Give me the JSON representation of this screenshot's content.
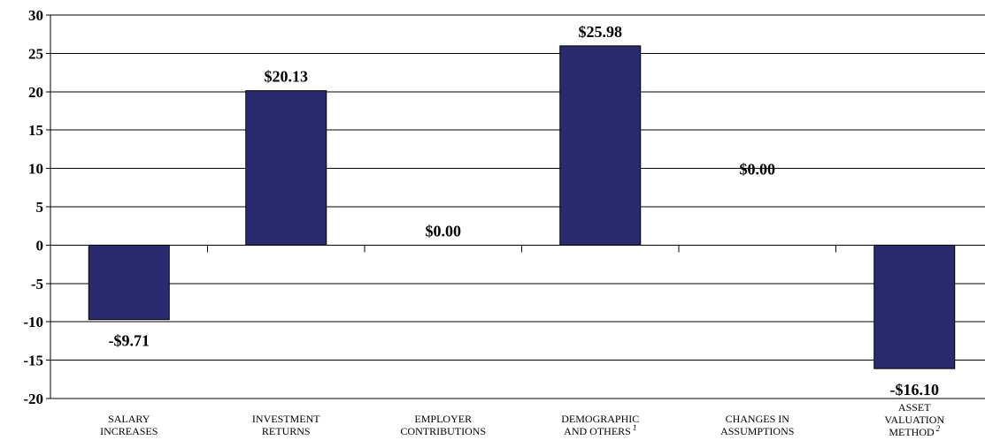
{
  "chart_data": {
    "type": "bar",
    "title": "",
    "xlabel": "",
    "ylabel": "",
    "ylim": [
      -20,
      30
    ],
    "yticks": [
      30,
      25,
      20,
      15,
      10,
      5,
      0,
      -5,
      -10,
      -15,
      -20
    ],
    "grid": true,
    "categories": [
      "SALARY INCREASES",
      "INVESTMENT RETURNS",
      "EMPLOYER CONTRIBUTIONS",
      "DEMOGRAPHIC AND OTHERS",
      "CHANGES IN ASSUMPTIONS",
      "ASSET VALUATION METHOD"
    ],
    "category_lines": [
      [
        "SALARY",
        "INCREASES"
      ],
      [
        "INVESTMENT",
        "RETURNS"
      ],
      [
        "EMPLOYER",
        "CONTRIBUTIONS"
      ],
      [
        "DEMOGRAPHIC",
        "AND OTHERS"
      ],
      [
        "CHANGES IN",
        "ASSUMPTIONS"
      ],
      [
        "ASSET",
        "VALUATION",
        "METHOD"
      ]
    ],
    "category_footnotes": [
      "",
      "",
      "",
      "1",
      "",
      "2"
    ],
    "values": [
      -9.71,
      20.13,
      0.0,
      25.98,
      0.0,
      -16.1
    ],
    "data_labels": [
      "-$9.71",
      "$20.13",
      "$0.00",
      "$25.98",
      "$0.00",
      "-$16.10"
    ],
    "bar_color": "#2a2a6e"
  }
}
